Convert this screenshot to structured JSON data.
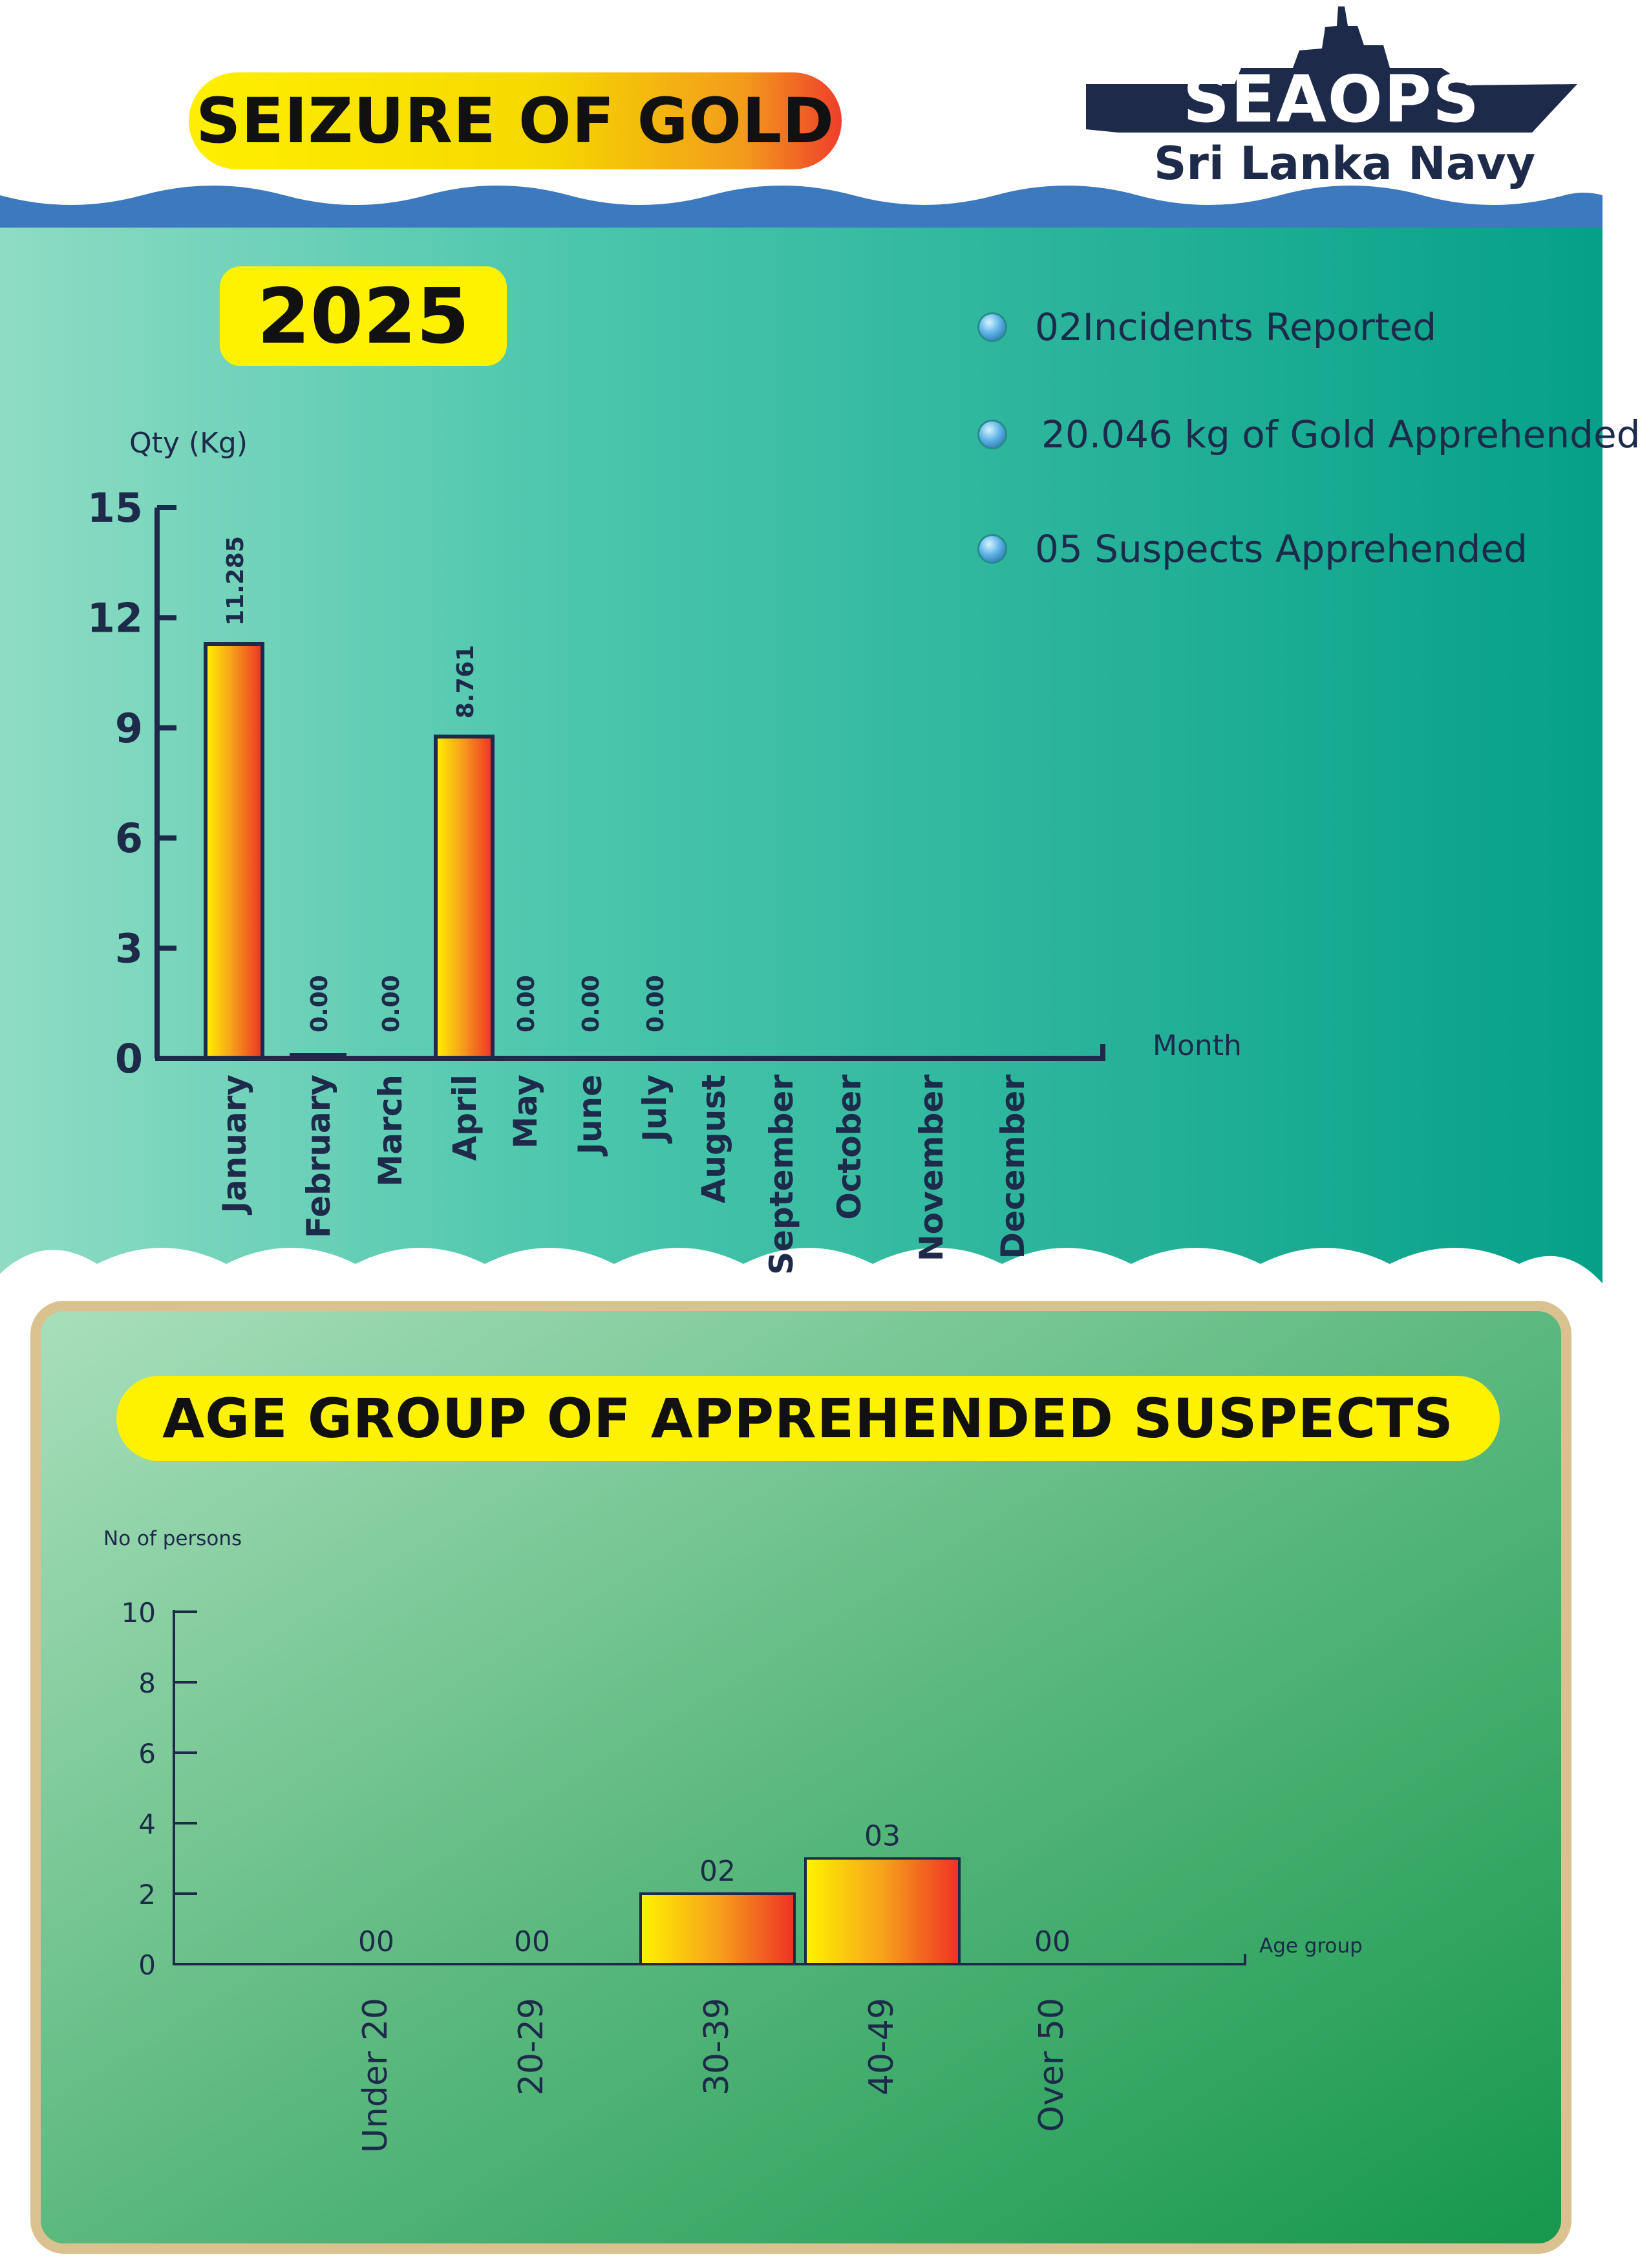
{
  "header": {
    "title": "SEIZURE OF GOLD",
    "logo_main": "SEAOPS",
    "logo_sub": "Sri Lanka Navy"
  },
  "year": "2025",
  "stats": [
    {
      "text": "02Incidents Reported"
    },
    {
      "text": "20.046 kg of Gold Apprehended"
    },
    {
      "text": "05 Suspects Apprehended"
    }
  ],
  "age_section": {
    "title": "AGE GROUP OF APPREHENDED SUSPECTS"
  },
  "colors": {
    "teal_panel": "#14a58b",
    "teal_light": "#8fdcc4",
    "wave_blue": "#3c79be",
    "green_panel": "#1d9a52",
    "green_light": "#a9dfbc",
    "panel_border": "#d9c28f",
    "axis": "#1d2a4a",
    "bar_start": "#fff200",
    "bar_end": "#ee3124",
    "title_yellow": "#fff200"
  },
  "chart_data": [
    {
      "type": "bar",
      "title": "",
      "ylabel": "Qty (Kg)",
      "xlabel": "Month",
      "ylim": [
        0,
        15
      ],
      "yticks": [
        "0",
        "3",
        "6",
        "9",
        "12",
        "15"
      ],
      "categories": [
        "January",
        "February",
        "March",
        "April",
        "May",
        "June",
        "July",
        "August",
        "September",
        "October",
        "November",
        "December"
      ],
      "values": [
        11.285,
        0.0,
        0.0,
        8.761,
        0.0,
        0.0,
        0.0,
        null,
        null,
        null,
        null,
        null
      ],
      "data_labels": [
        "11.285",
        "0.00",
        "0.00",
        "8.761",
        "0.00",
        "0.00",
        "0.00",
        "",
        "",
        "",
        "",
        ""
      ],
      "grid": false,
      "legend": "none"
    },
    {
      "type": "bar",
      "title": "",
      "ylabel": "No of persons",
      "xlabel": "Age group",
      "ylim": [
        0,
        10
      ],
      "yticks": [
        "0",
        "2",
        "4",
        "6",
        "8",
        "10"
      ],
      "categories": [
        "Under 20",
        "20-29",
        "30-39",
        "40-49",
        "Over 50"
      ],
      "values": [
        0,
        0,
        2,
        3,
        0
      ],
      "data_labels": [
        "00",
        "00",
        "02",
        "03",
        "00"
      ],
      "grid": false,
      "legend": "none"
    }
  ]
}
